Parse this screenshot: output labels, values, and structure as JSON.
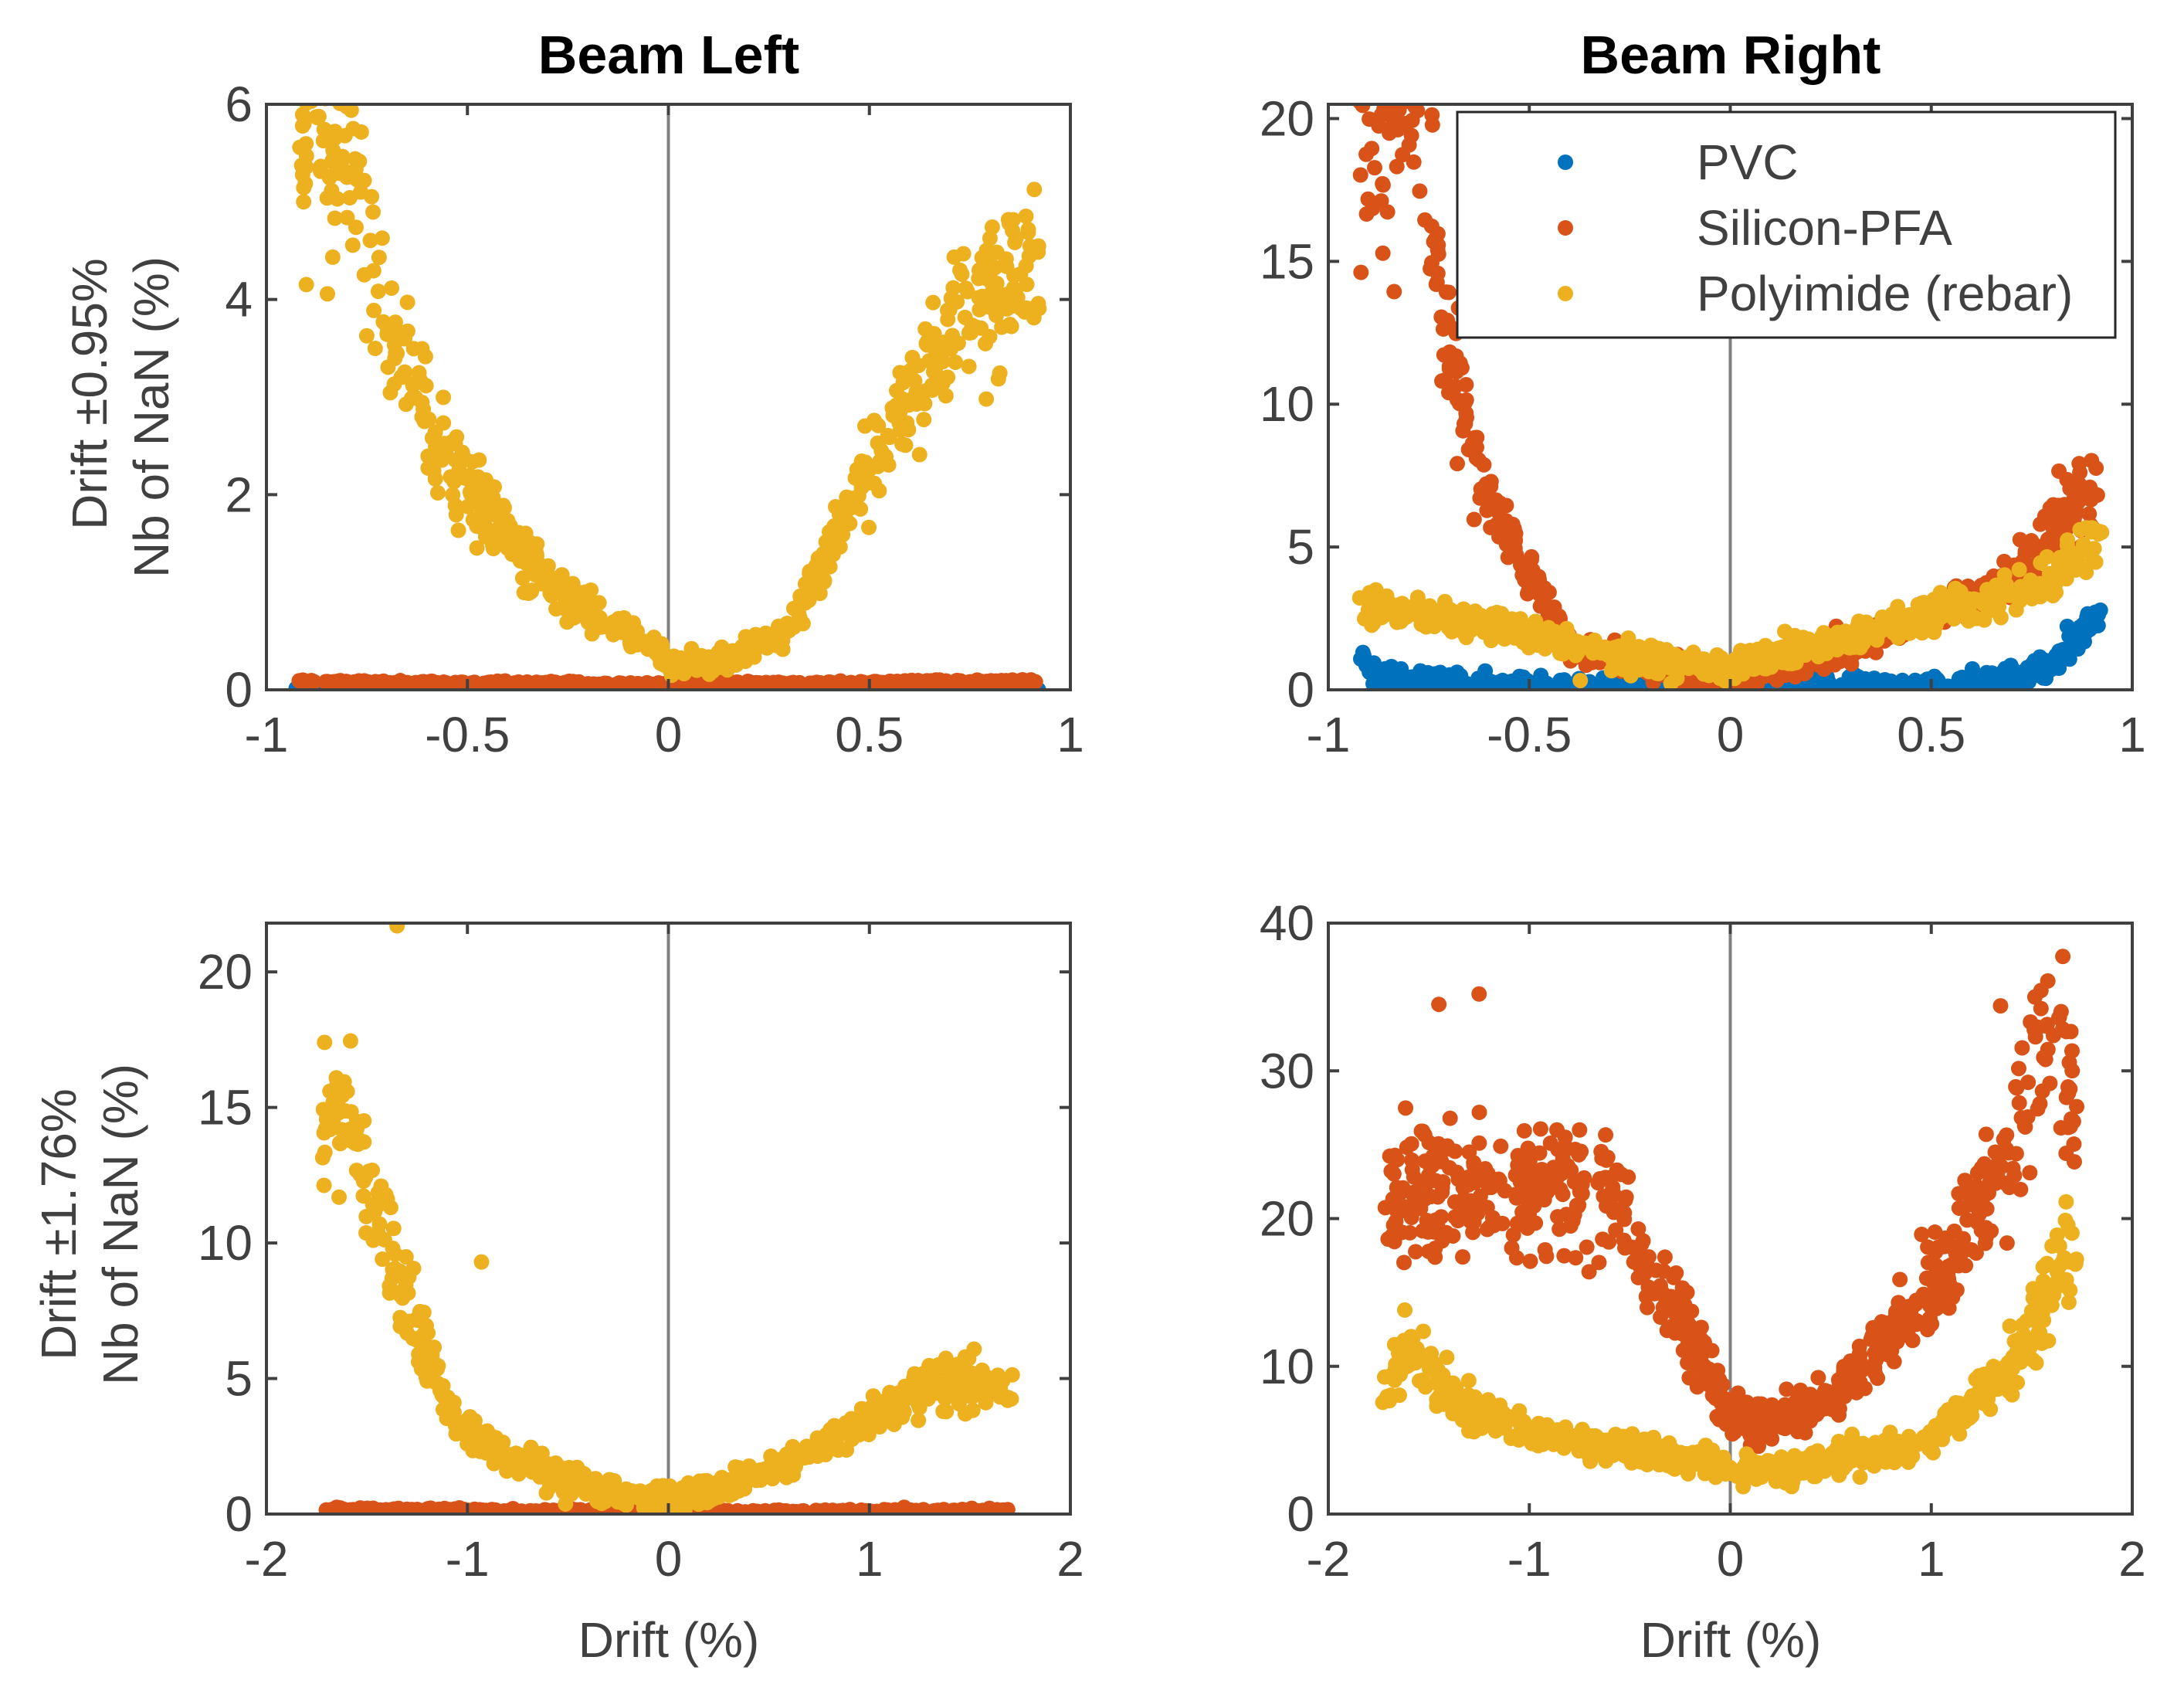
{
  "chart_data": [
    {
      "type": "scatter",
      "title": "Beam Left",
      "ylabel_lines": [
        "Drift ±0.95%",
        "Nb of NaN (%)"
      ],
      "xlabel": "",
      "xlim": [
        -1,
        1
      ],
      "ylim": [
        0,
        6
      ],
      "xticks": [
        "-1",
        "-0.5",
        "0",
        "0.5",
        "1"
      ],
      "yticks": [
        "0",
        "2",
        "4",
        "6"
      ],
      "vline_at": 0,
      "grid": false,
      "legend": null,
      "colors": {
        "PVC": "#0072BD",
        "Silicon-PFA": "#D95319",
        "Polyimide (rebar)": "#EDB120"
      },
      "series": [
        {
          "name": "PVC",
          "x_range": [
            -0.92,
            0.92
          ],
          "trend": "flat near 0",
          "y_points": [
            [
              -0.92,
              0
            ],
            [
              0,
              0
            ],
            [
              0.92,
              0
            ]
          ]
        },
        {
          "name": "Silicon-PFA",
          "x_range": [
            -0.92,
            0.92
          ],
          "trend": "flat near 0",
          "y_points": [
            [
              -0.92,
              0.08
            ],
            [
              0,
              0.05
            ],
            [
              0.92,
              0.08
            ]
          ]
        },
        {
          "name": "Polyimide (rebar)",
          "x_range": [
            -0.92,
            0.92
          ],
          "trend": "V-shape",
          "y_points": [
            [
              -0.9,
              5.6
            ],
            [
              -0.8,
              5.7
            ],
            [
              -0.7,
              3.6
            ],
            [
              -0.5,
              2.0
            ],
            [
              -0.3,
              1.1
            ],
            [
              -0.1,
              0.6
            ],
            [
              0,
              0.3
            ],
            [
              0.1,
              0.25
            ],
            [
              0.3,
              0.6
            ],
            [
              0.5,
              2.3
            ],
            [
              0.7,
              3.6
            ],
            [
              0.9,
              4.4
            ]
          ]
        }
      ]
    },
    {
      "type": "scatter",
      "title": "Beam Right",
      "ylabel_lines": [],
      "xlabel": "",
      "xlim": [
        -1,
        1
      ],
      "ylim": [
        0,
        20.5
      ],
      "xticks": [
        "-1",
        "-0.5",
        "0",
        "0.5",
        "1"
      ],
      "yticks": [
        "0",
        "5",
        "10",
        "15",
        "20"
      ],
      "vline_at": 0,
      "grid": false,
      "legend": {
        "placement": "top-right",
        "entries": [
          "PVC",
          "Silicon-PFA",
          "Polyimide (rebar)"
        ]
      },
      "colors": {
        "PVC": "#0072BD",
        "Silicon-PFA": "#D95319",
        "Polyimide (rebar)": "#EDB120"
      },
      "series": [
        {
          "name": "PVC",
          "x_range": [
            -0.92,
            0.92
          ],
          "trend": "near 0, rising at right end",
          "y_points": [
            [
              -0.92,
              1.2
            ],
            [
              -0.85,
              0.2
            ],
            [
              -0.5,
              0
            ],
            [
              0,
              0
            ],
            [
              0.5,
              0
            ],
            [
              0.65,
              0.2
            ],
            [
              0.8,
              0.8
            ],
            [
              0.92,
              2.6
            ]
          ]
        },
        {
          "name": "Silicon-PFA",
          "x_range": [
            -0.92,
            0.92
          ],
          "trend": "high at left, low middle, rising right",
          "y_points": [
            [
              -0.92,
              19.5
            ],
            [
              -0.8,
              20.2
            ],
            [
              -0.75,
              17
            ],
            [
              -0.7,
              12
            ],
            [
              -0.6,
              7
            ],
            [
              -0.5,
              4
            ],
            [
              -0.4,
              1.5
            ],
            [
              -0.2,
              0.8
            ],
            [
              0,
              0.3
            ],
            [
              0.2,
              1.0
            ],
            [
              0.4,
              2.0
            ],
            [
              0.6,
              3.0
            ],
            [
              0.75,
              4.5
            ],
            [
              0.9,
              7.5
            ]
          ]
        },
        {
          "name": "Polyimide (rebar)",
          "x_range": [
            -0.92,
            0.92
          ],
          "trend": "U-shape",
          "y_points": [
            [
              -0.92,
              3.0
            ],
            [
              -0.7,
              2.5
            ],
            [
              -0.5,
              2.0
            ],
            [
              -0.3,
              1.2
            ],
            [
              -0.1,
              0.9
            ],
            [
              0,
              0.8
            ],
            [
              0.2,
              1.5
            ],
            [
              0.4,
              2.3
            ],
            [
              0.6,
              3.0
            ],
            [
              0.8,
              3.8
            ],
            [
              0.92,
              5.5
            ]
          ]
        }
      ]
    },
    {
      "type": "scatter",
      "title": "",
      "ylabel_lines": [
        "Drift ±1.76%",
        "Nb of NaN (%)"
      ],
      "xlabel": "Drift (%)",
      "xlim": [
        -2,
        2
      ],
      "ylim": [
        0,
        21.8
      ],
      "xticks": [
        "-2",
        "-1",
        "0",
        "1",
        "2"
      ],
      "yticks": [
        "0",
        "5",
        "10",
        "15",
        "20"
      ],
      "vline_at": 0,
      "grid": false,
      "legend": null,
      "colors": {
        "PVC": "#0072BD",
        "Silicon-PFA": "#D95319",
        "Polyimide (rebar)": "#EDB120"
      },
      "series": [
        {
          "name": "Silicon-PFA",
          "x_range": [
            -1.72,
            1.72
          ],
          "trend": "flat near 0",
          "y_points": [
            [
              -1.72,
              0.15
            ],
            [
              0,
              0.05
            ],
            [
              1.72,
              0.1
            ]
          ]
        },
        {
          "name": "Polyimide (rebar)",
          "x_range": [
            -1.72,
            1.72
          ],
          "trend": "high left, low middle, moderate right",
          "y_points": [
            [
              -1.7,
              14
            ],
            [
              -1.6,
              15.5
            ],
            [
              -1.5,
              12
            ],
            [
              -1.3,
              8
            ],
            [
              -1.1,
              4
            ],
            [
              -0.9,
              2.5
            ],
            [
              -0.6,
              1.5
            ],
            [
              -0.3,
              0.8
            ],
            [
              0,
              0.4
            ],
            [
              0.3,
              1.0
            ],
            [
              0.6,
              2.0
            ],
            [
              0.9,
              3.0
            ],
            [
              1.2,
              4.5
            ],
            [
              1.5,
              5.0
            ],
            [
              1.72,
              4.6
            ]
          ],
          "outliers": [
            [
              -1.35,
              21.7
            ],
            [
              -0.93,
              9.3
            ]
          ]
        }
      ]
    },
    {
      "type": "scatter",
      "title": "",
      "ylabel_lines": [],
      "xlabel": "Drift (%)",
      "xlim": [
        -2,
        2
      ],
      "ylim": [
        0,
        40
      ],
      "xticks": [
        "-2",
        "-1",
        "0",
        "1",
        "2"
      ],
      "yticks": [
        "0",
        "10",
        "20",
        "30",
        "40"
      ],
      "vline_at": 0,
      "grid": false,
      "legend": null,
      "colors": {
        "PVC": "#0072BD",
        "Silicon-PFA": "#D95319",
        "Polyimide (rebar)": "#EDB120"
      },
      "series": [
        {
          "name": "Silicon-PFA",
          "x_range": [
            -1.72,
            1.72
          ],
          "trend": "plateau ~22 at left, dip near 0, steep rise at right",
          "y_points": [
            [
              -1.72,
              22
            ],
            [
              -1.4,
              22
            ],
            [
              -1.0,
              22
            ],
            [
              -0.6,
              21.5
            ],
            [
              -0.4,
              16
            ],
            [
              -0.2,
              12
            ],
            [
              0,
              7
            ],
            [
              0.2,
              6
            ],
            [
              0.5,
              8
            ],
            [
              0.8,
              12
            ],
            [
              1.1,
              17
            ],
            [
              1.3,
              22
            ],
            [
              1.5,
              30
            ],
            [
              1.62,
              35
            ],
            [
              1.7,
              27
            ]
          ],
          "outliers": [
            [
              -1.45,
              34.5
            ],
            [
              -1.25,
              35.2
            ],
            [
              -0.75,
              26.0
            ]
          ]
        },
        {
          "name": "Polyimide (rebar)",
          "x_range": [
            -1.72,
            1.72
          ],
          "trend": "U-shape",
          "y_points": [
            [
              -1.72,
              8
            ],
            [
              -1.6,
              11
            ],
            [
              -1.3,
              7
            ],
            [
              -1.0,
              5.5
            ],
            [
              -0.6,
              4.5
            ],
            [
              -0.3,
              4
            ],
            [
              0,
              3
            ],
            [
              0.3,
              3
            ],
            [
              0.6,
              4
            ],
            [
              0.9,
              4.5
            ],
            [
              1.2,
              7
            ],
            [
              1.5,
              12
            ],
            [
              1.7,
              18
            ]
          ]
        }
      ]
    }
  ]
}
